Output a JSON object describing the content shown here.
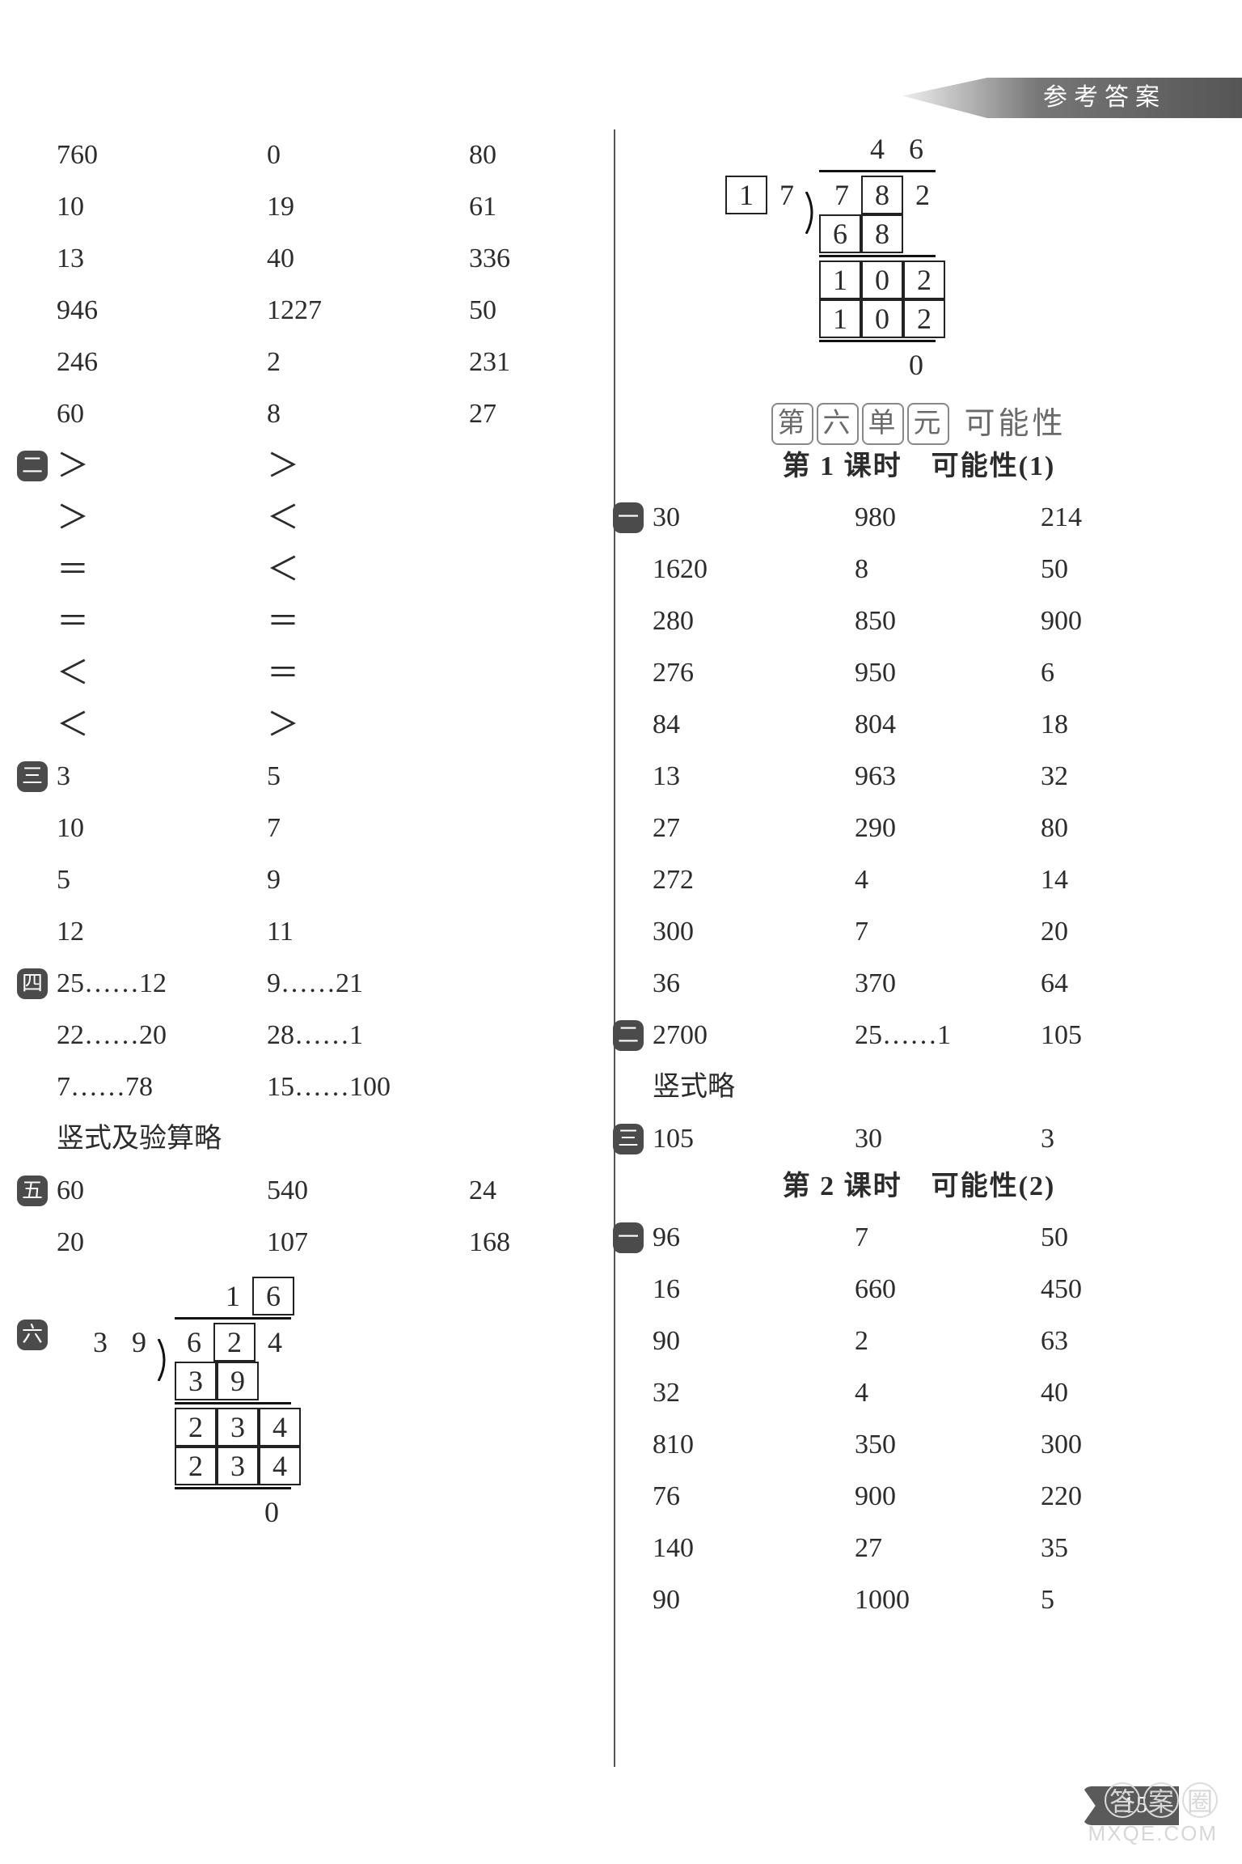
{
  "colors": {
    "text": "#2b2b2b",
    "rule": "#111111",
    "header_grad_from": "#eeeeee",
    "header_grad_to": "#555555",
    "unit_box_border": "#888888",
    "pagenum_bg": "#5a5a5a",
    "watermark": "#d7d7d7",
    "divider": "#555555"
  },
  "header_tab": "参考答案",
  "page_number": "15",
  "watermark_cn": [
    "答",
    "案",
    "圈"
  ],
  "watermark_en": "MXQE.COM",
  "left": {
    "sec1_rows": [
      [
        "760",
        "0",
        "80"
      ],
      [
        "10",
        "19",
        "61"
      ],
      [
        "13",
        "40",
        "336"
      ],
      [
        "946",
        "1227",
        "50"
      ],
      [
        "246",
        "2",
        "231"
      ],
      [
        "60",
        "8",
        "27"
      ]
    ],
    "sec2_rows": [
      [
        "＞",
        "＞"
      ],
      [
        "＞",
        "＜"
      ],
      [
        "＝",
        "＜"
      ],
      [
        "＝",
        "＝"
      ],
      [
        "＜",
        "＝"
      ],
      [
        "＜",
        "＞"
      ]
    ],
    "sec3_rows": [
      [
        "3",
        "5"
      ],
      [
        "10",
        "7"
      ],
      [
        "5",
        "9"
      ],
      [
        "12",
        "11"
      ]
    ],
    "sec4_rows": [
      [
        "25……12",
        "9……21"
      ],
      [
        "22……20",
        "28……1"
      ],
      [
        "7……78",
        "15……100"
      ]
    ],
    "sec4_note": "竖式及验算略",
    "sec5_rows": [
      [
        "60",
        "540",
        "24"
      ],
      [
        "20",
        "107",
        "168"
      ]
    ],
    "sec6_longdiv": {
      "quotient": [
        "",
        "1",
        "6"
      ],
      "quotient_boxed": [
        false,
        false,
        true
      ],
      "divisor": [
        "3",
        "9"
      ],
      "divisor_boxed": [
        false,
        false
      ],
      "dividend": [
        "6",
        "2",
        "4"
      ],
      "dividend_boxed": [
        false,
        true,
        false
      ],
      "lines": [
        {
          "cells": [
            "3",
            "9",
            ""
          ],
          "boxed": [
            true,
            true,
            false
          ],
          "rule_after": true,
          "rule_span": 3
        },
        {
          "cells": [
            "2",
            "3",
            "4"
          ],
          "boxed": [
            true,
            true,
            true
          ],
          "rule_after": false
        },
        {
          "cells": [
            "2",
            "3",
            "4"
          ],
          "boxed": [
            true,
            true,
            true
          ],
          "rule_after": true,
          "rule_span": 3
        },
        {
          "cells": [
            "",
            "",
            "0"
          ],
          "boxed": [
            false,
            false,
            false
          ],
          "rule_after": false
        }
      ]
    }
  },
  "right": {
    "top_longdiv": {
      "quotient": [
        "",
        "4",
        "6"
      ],
      "quotient_boxed": [
        false,
        false,
        false
      ],
      "divisor": [
        "1",
        "7"
      ],
      "divisor_boxed": [
        true,
        false
      ],
      "dividend": [
        "7",
        "8",
        "2"
      ],
      "dividend_boxed": [
        false,
        true,
        false
      ],
      "lines": [
        {
          "cells": [
            "6",
            "8",
            ""
          ],
          "boxed": [
            true,
            true,
            false
          ],
          "rule_after": true,
          "rule_span": 3
        },
        {
          "cells": [
            "1",
            "0",
            "2"
          ],
          "boxed": [
            true,
            true,
            true
          ],
          "rule_after": false
        },
        {
          "cells": [
            "1",
            "0",
            "2"
          ],
          "boxed": [
            true,
            true,
            true
          ],
          "rule_after": true,
          "rule_span": 3
        },
        {
          "cells": [
            "",
            "",
            "0"
          ],
          "boxed": [
            false,
            false,
            false
          ],
          "rule_after": false
        }
      ]
    },
    "unit_chars": [
      "第",
      "六",
      "单",
      "元"
    ],
    "unit_tail": "可能性",
    "lesson1_title": "第 1 课时　可能性(1)",
    "lesson1_sec1_rows": [
      [
        "30",
        "980",
        "214"
      ],
      [
        "1620",
        "8",
        "50"
      ],
      [
        "280",
        "850",
        "900"
      ],
      [
        "276",
        "950",
        "6"
      ],
      [
        "84",
        "804",
        "18"
      ],
      [
        "13",
        "963",
        "32"
      ],
      [
        "27",
        "290",
        "80"
      ],
      [
        "272",
        "4",
        "14"
      ],
      [
        "300",
        "7",
        "20"
      ],
      [
        "36",
        "370",
        "64"
      ]
    ],
    "lesson1_sec2_row": [
      "2700",
      "25……1",
      "105"
    ],
    "lesson1_sec2_note": "竖式略",
    "lesson1_sec3_row": [
      "105",
      "30",
      "3"
    ],
    "lesson2_title": "第 2 课时　可能性(2)",
    "lesson2_sec1_rows": [
      [
        "96",
        "7",
        "50"
      ],
      [
        "16",
        "660",
        "450"
      ],
      [
        "90",
        "2",
        "63"
      ],
      [
        "32",
        "4",
        "40"
      ],
      [
        "810",
        "350",
        "300"
      ],
      [
        "76",
        "900",
        "220"
      ],
      [
        "140",
        "27",
        "35"
      ],
      [
        "90",
        "1000",
        "5"
      ]
    ]
  },
  "markers": {
    "one": "一",
    "two": "二",
    "three": "三",
    "four": "四",
    "five": "五",
    "six": "六"
  }
}
